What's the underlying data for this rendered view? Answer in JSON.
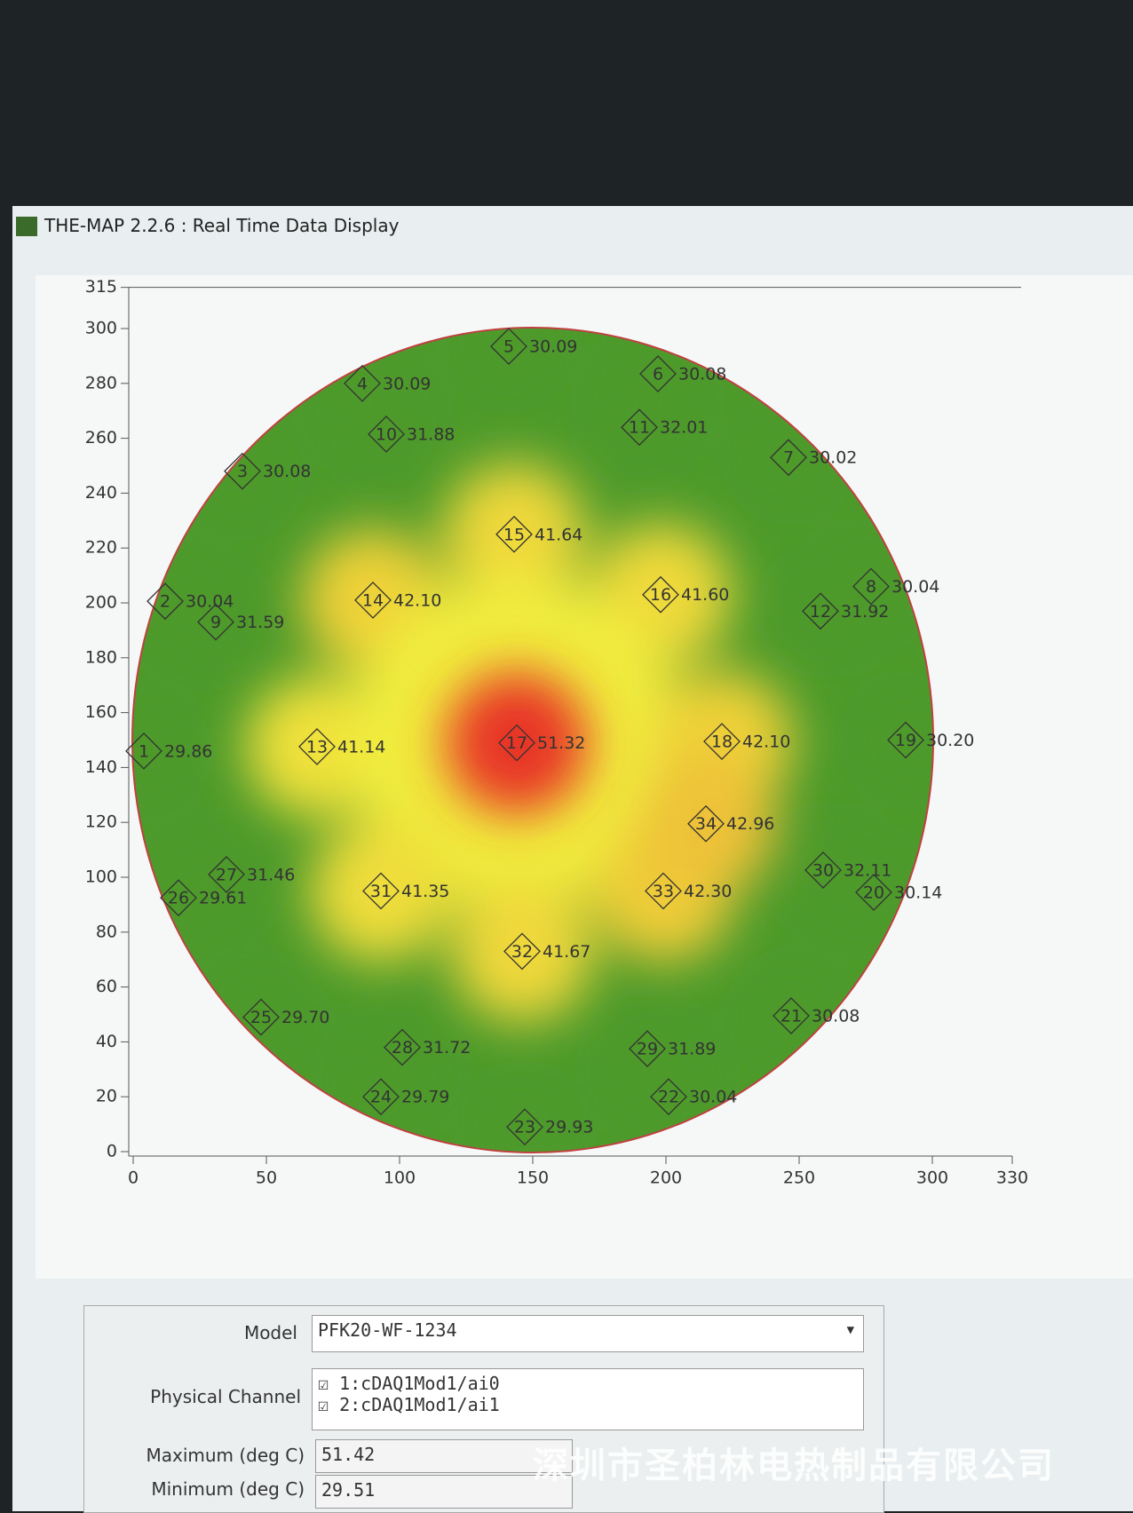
{
  "window": {
    "title": "THE-MAP 2.2.6 : Real Time Data Display"
  },
  "chart_data": {
    "type": "scatter",
    "xlim": [
      0,
      330
    ],
    "ylim": [
      0,
      315
    ],
    "xticks": [
      0,
      50,
      100,
      150,
      200,
      250,
      300,
      330
    ],
    "yticks": [
      0,
      20,
      40,
      60,
      80,
      100,
      120,
      140,
      160,
      180,
      200,
      220,
      240,
      260,
      280,
      300,
      315
    ],
    "labels": [
      "1",
      "2",
      "3",
      "4",
      "5",
      "6",
      "7",
      "8",
      "9",
      "10",
      "11",
      "12",
      "13",
      "14",
      "15",
      "16",
      "17",
      "18",
      "19",
      "20",
      "21",
      "22",
      "23",
      "24",
      "25",
      "26",
      "27",
      "28",
      "29",
      "30",
      "31",
      "32",
      "33",
      "34"
    ],
    "x": [
      4,
      12,
      41,
      86,
      141,
      197,
      246,
      277,
      31,
      95,
      190,
      258,
      69,
      90,
      143,
      198,
      144,
      221,
      290,
      278,
      247,
      201,
      147,
      93,
      48,
      17,
      35,
      101,
      193,
      259,
      93,
      146,
      199,
      215
    ],
    "y": [
      146,
      200.6,
      248,
      280,
      293.5,
      283.5,
      253,
      206,
      193,
      261.5,
      264,
      197,
      147.6,
      201,
      225,
      203,
      149,
      149.5,
      150,
      94.5,
      49.5,
      20,
      9,
      20,
      49,
      92.5,
      101,
      38,
      37.5,
      102.6,
      95,
      73,
      95,
      119.5
    ],
    "values": [
      29.86,
      30.04,
      30.08,
      30.09,
      30.09,
      30.08,
      30.02,
      30.04,
      31.59,
      31.88,
      32.01,
      31.92,
      41.14,
      42.1,
      41.64,
      41.6,
      51.32,
      42.1,
      30.2,
      30.14,
      30.08,
      30.04,
      29.93,
      29.79,
      29.7,
      29.61,
      31.46,
      31.72,
      31.89,
      32.11,
      41.35,
      41.67,
      42.3,
      42.96
    ],
    "value_labels": [
      "29.86",
      "30.04",
      "30.08",
      "30.09",
      "30.09",
      "30.08",
      "30.02",
      "30.04",
      "31.59",
      "31.88",
      "32.01",
      "31.92",
      "41.14",
      "42.10",
      "41.64",
      "41.60",
      "51.32",
      "42.10",
      "30.20",
      "30.14",
      "30.08",
      "30.04",
      "29.93",
      "29.79",
      "29.70",
      "29.61",
      "31.46",
      "31.72",
      "31.89",
      "32.11",
      "41.35",
      "41.67",
      "42.30",
      "42.96"
    ]
  },
  "form": {
    "model_label": "Model",
    "model": "PFK20-WF-1234",
    "channel_label": "Physical Channel",
    "channels": [
      "1:cDAQ1Mod1/ai0",
      "2:cDAQ1Mod1/ai1"
    ],
    "max_label": "Maximum (deg C)",
    "max": 51.42,
    "min_label": "Minimum (deg C)",
    "min": 29.51
  },
  "watermark": "深圳市圣柏林电热制品有限公司"
}
